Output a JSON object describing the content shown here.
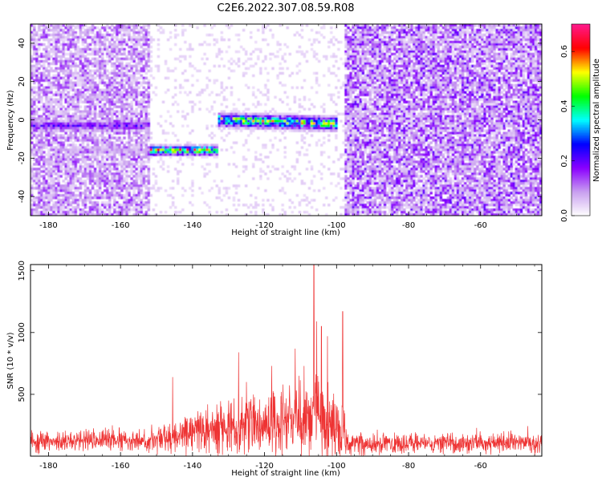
{
  "figure_title": "C2E6.2022.307.08.59.R08",
  "chart_data": [
    {
      "type": "heatmap",
      "title": "C2E6.2022.307.08.59.R08",
      "xlabel": "Height of straight line (km)",
      "ylabel": "Frequency (Hz)",
      "xlim": [
        -185,
        -43
      ],
      "ylim": [
        -50,
        50
      ],
      "x_ticks": [
        -180,
        -160,
        -140,
        -120,
        -100,
        -80,
        -60
      ],
      "x_tick_labels": [
        "-180",
        "-160",
        "-140",
        "-120",
        "-100",
        "-80",
        "-60"
      ],
      "y_ticks": [
        -40,
        -20,
        0,
        20,
        40
      ],
      "y_tick_labels": [
        "-40",
        "-20",
        "0",
        "20",
        "40"
      ],
      "colorbar": {
        "label": "Normalized spectral amplitude",
        "range": [
          0,
          0.7
        ],
        "ticks": [
          0,
          0.2,
          0.4,
          0.6
        ],
        "tick_labels": [
          "0.0",
          "0.2",
          "0.4",
          "0.6"
        ],
        "colors": [
          "#ffffff",
          "#c9a0ef",
          "#8a00ff",
          "#0000ff",
          "#00ffff",
          "#00ff00",
          "#ffff00",
          "#ff0000",
          "#ff1a8c"
        ]
      },
      "features": [
        {
          "name": "strong_band_upper",
          "x_range": [
            -133,
            -100
          ],
          "freq_start": 0,
          "freq_end": -2,
          "peak_amplitude": 0.6
        },
        {
          "name": "strong_band_lower",
          "x_range": [
            -152,
            -133
          ],
          "freq": -16,
          "peak_amplitude": 0.68
        },
        {
          "name": "weak_band_left",
          "x_range": [
            -185,
            -152
          ],
          "freq": -3,
          "peak_amplitude": 0.25
        },
        {
          "name": "weak_band_left_lower",
          "x_range": [
            -175,
            -152
          ],
          "freq": -16,
          "peak_amplitude": 0.1
        },
        {
          "name": "background_noise_left",
          "x_range": [
            -185,
            -152
          ],
          "level": 0.08
        },
        {
          "name": "sparse_region",
          "x_range": [
            -152,
            -98
          ],
          "level": 0.02
        },
        {
          "name": "background_noise_right",
          "x_range": [
            -98,
            -43
          ],
          "level": 0.1
        }
      ]
    },
    {
      "type": "line",
      "xlabel": "Height of straight line (km)",
      "ylabel": "SNR (10 * v/v)",
      "xlim": [
        -185,
        -43
      ],
      "ylim": [
        0,
        1550
      ],
      "x_ticks": [
        -180,
        -160,
        -140,
        -120,
        -100,
        -80,
        -60
      ],
      "x_tick_labels": [
        "-180",
        "-160",
        "-140",
        "-120",
        "-100",
        "-80",
        "-60"
      ],
      "y_ticks": [
        500,
        1000,
        1500
      ],
      "y_tick_labels": [
        "500",
        "1000",
        "1500"
      ],
      "line_color": "#ee3333",
      "envelope": {
        "x": [
          -185,
          -160,
          -152,
          -146,
          -140,
          -130,
          -127,
          -120,
          -112,
          -106,
          -104,
          -101,
          -98,
          -97,
          -90,
          -80,
          -60,
          -43
        ],
        "y_baseline": [
          120,
          130,
          130,
          140,
          200,
          230,
          240,
          260,
          290,
          330,
          300,
          260,
          200,
          120,
          100,
          100,
          105,
          110
        ],
        "y_amplitude": [
          120,
          130,
          150,
          190,
          250,
          300,
          330,
          340,
          400,
          500,
          450,
          380,
          300,
          140,
          110,
          110,
          115,
          120
        ]
      },
      "peaks": [
        {
          "x": -145.5,
          "y": 640
        },
        {
          "x": -127.2,
          "y": 840
        },
        {
          "x": -125,
          "y": 600
        },
        {
          "x": -118,
          "y": 730
        },
        {
          "x": -111.5,
          "y": 870
        },
        {
          "x": -109,
          "y": 730
        },
        {
          "x": -106.3,
          "y": 1600
        },
        {
          "x": -105.5,
          "y": 1090
        },
        {
          "x": -104.2,
          "y": 1050
        },
        {
          "x": -102.5,
          "y": 970
        },
        {
          "x": -98.3,
          "y": 1170
        }
      ]
    }
  ]
}
